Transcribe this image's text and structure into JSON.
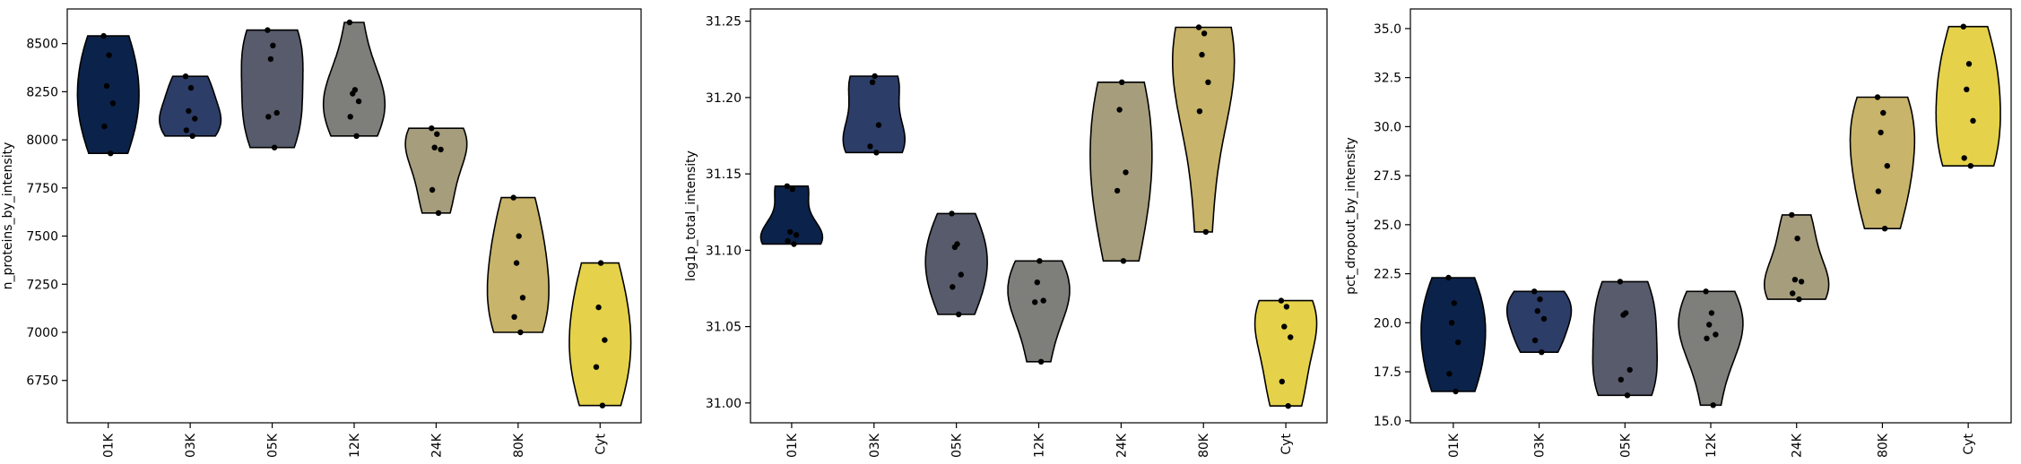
{
  "chart_data": [
    {
      "type": "violin",
      "ylabel": "n_proteins_by_intensity",
      "ylim": [
        6530,
        8680
      ],
      "yticks": [
        6750,
        7000,
        7250,
        7500,
        7750,
        8000,
        8250,
        8500
      ],
      "ytick_labels": [
        "6750",
        "7000",
        "7250",
        "7500",
        "7750",
        "8000",
        "8250",
        "8500"
      ],
      "categories": [
        "01K",
        "03K",
        "05K",
        "12K",
        "24K",
        "80K",
        "Cyt"
      ],
      "colors": [
        "#0b234a",
        "#2c3d68",
        "#575b6b",
        "#7e7f7b",
        "#a69d7c",
        "#c8b46a",
        "#e5d24a"
      ],
      "points": [
        [
          7930,
          8070,
          8190,
          8280,
          8440,
          8540
        ],
        [
          8020,
          8050,
          8110,
          8150,
          8270,
          8330
        ],
        [
          7960,
          8120,
          8140,
          8420,
          8490,
          8570
        ],
        [
          8020,
          8120,
          8200,
          8240,
          8260,
          8610
        ],
        [
          7620,
          7740,
          7950,
          7960,
          8030,
          8060
        ],
        [
          7000,
          7080,
          7180,
          7360,
          7500,
          7700
        ],
        [
          6620,
          6820,
          6960,
          7130,
          7360
        ]
      ]
    },
    {
      "type": "violin",
      "ylabel": "log1p_total_intensity",
      "ylim": [
        30.987,
        31.258
      ],
      "yticks": [
        31.0,
        31.05,
        31.1,
        31.15,
        31.2,
        31.25
      ],
      "ytick_labels": [
        "31.00",
        "31.05",
        "31.10",
        "31.15",
        "31.20",
        "31.25"
      ],
      "categories": [
        "01K",
        "03K",
        "05K",
        "12K",
        "24K",
        "80K",
        "Cyt"
      ],
      "colors": [
        "#0b234a",
        "#2c3d68",
        "#575b6b",
        "#7e7f7b",
        "#a69d7c",
        "#c8b46a",
        "#e5d24a"
      ],
      "points": [
        [
          31.104,
          31.106,
          31.11,
          31.112,
          31.14,
          31.142
        ],
        [
          31.164,
          31.168,
          31.182,
          31.21,
          31.214
        ],
        [
          31.058,
          31.076,
          31.084,
          31.102,
          31.104,
          31.124
        ],
        [
          31.027,
          31.066,
          31.067,
          31.079,
          31.093
        ],
        [
          31.093,
          31.139,
          31.151,
          31.192,
          31.21
        ],
        [
          31.112,
          31.191,
          31.21,
          31.228,
          31.242,
          31.246
        ],
        [
          30.998,
          31.014,
          31.043,
          31.05,
          31.063,
          31.067
        ]
      ]
    },
    {
      "type": "violin",
      "ylabel": "pct_dropout_by_intensity",
      "ylim": [
        14.9,
        36.0
      ],
      "yticks": [
        15.0,
        17.5,
        20.0,
        22.5,
        25.0,
        27.5,
        30.0,
        32.5,
        35.0
      ],
      "ytick_labels": [
        "15.0",
        "17.5",
        "20.0",
        "22.5",
        "25.0",
        "27.5",
        "30.0",
        "32.5",
        "35.0"
      ],
      "categories": [
        "01K",
        "03K",
        "05K",
        "12K",
        "24K",
        "80K",
        "Cyt"
      ],
      "colors": [
        "#0b234a",
        "#2c3d68",
        "#575b6b",
        "#7e7f7b",
        "#a69d7c",
        "#c8b46a",
        "#e5d24a"
      ],
      "points": [
        [
          16.5,
          17.4,
          19.0,
          20.0,
          21.0,
          22.3
        ],
        [
          18.5,
          19.1,
          20.2,
          20.6,
          21.2,
          21.6
        ],
        [
          16.3,
          17.1,
          17.6,
          20.4,
          20.5,
          22.1
        ],
        [
          15.8,
          19.2,
          19.4,
          19.9,
          20.5,
          21.6
        ],
        [
          21.2,
          21.5,
          22.1,
          22.2,
          24.3,
          25.5
        ],
        [
          24.8,
          26.7,
          28.0,
          29.7,
          30.7,
          31.5
        ],
        [
          28.0,
          28.4,
          30.3,
          31.9,
          33.2,
          35.1
        ]
      ]
    }
  ]
}
